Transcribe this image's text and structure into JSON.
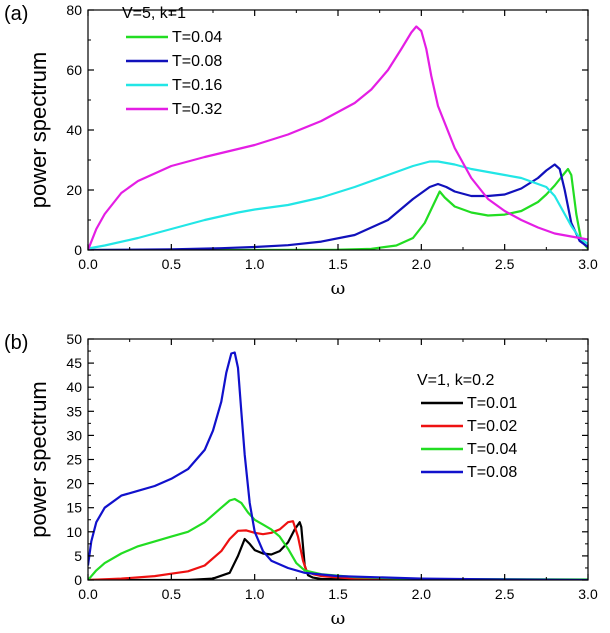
{
  "chart_data": [
    {
      "type": "line",
      "panel_label": "(a)",
      "ylabel": "power spectrum",
      "xlabel": "ω",
      "xlim": [
        0,
        3.0
      ],
      "ylim": [
        0,
        80
      ],
      "xticks": [
        "0.0",
        "0.5",
        "1.0",
        "1.5",
        "2.0",
        "2.5",
        "3.0"
      ],
      "yticks": [
        "0",
        "20",
        "40",
        "60",
        "80"
      ],
      "legend_title": "V=5, k=1",
      "legend_position": "top-left",
      "series": [
        {
          "name": "T=0.04",
          "color": "#22dd22",
          "x": [
            0,
            0.5,
            1.0,
            1.5,
            1.7,
            1.85,
            1.95,
            2.02,
            2.08,
            2.11,
            2.14,
            2.2,
            2.3,
            2.4,
            2.5,
            2.6,
            2.7,
            2.75,
            2.8,
            2.85,
            2.88,
            2.9,
            2.93,
            2.96,
            3.0
          ],
          "y": [
            0,
            0,
            0,
            0.1,
            0.4,
            1.5,
            4,
            9,
            16,
            19.5,
            17.5,
            14.5,
            12.5,
            11.5,
            11.8,
            13,
            16,
            18.5,
            21.5,
            25,
            27,
            25,
            12,
            3,
            0.5
          ]
        },
        {
          "name": "T=0.08",
          "color": "#1111bb",
          "x": [
            0,
            0.5,
            0.8,
            1.0,
            1.2,
            1.4,
            1.6,
            1.8,
            1.95,
            2.05,
            2.1,
            2.15,
            2.2,
            2.3,
            2.4,
            2.5,
            2.6,
            2.7,
            2.75,
            2.8,
            2.83,
            2.86,
            2.9,
            2.95,
            3.0
          ],
          "y": [
            0,
            0.2,
            0.6,
            1,
            1.6,
            2.8,
            5,
            10,
            17,
            21,
            22,
            21,
            19.5,
            18,
            18,
            18.5,
            20.5,
            24,
            26.5,
            28.5,
            27,
            20,
            9,
            3,
            1
          ]
        },
        {
          "name": "T=0.16",
          "color": "#22e6e6",
          "x": [
            0,
            0.1,
            0.3,
            0.5,
            0.7,
            0.9,
            1.0,
            1.2,
            1.4,
            1.6,
            1.8,
            1.95,
            2.05,
            2.1,
            2.2,
            2.3,
            2.4,
            2.5,
            2.6,
            2.7,
            2.75,
            2.8,
            2.85,
            2.9,
            2.95,
            3.0
          ],
          "y": [
            0.5,
            1.5,
            4,
            7,
            10,
            12.5,
            13.5,
            15,
            17.5,
            21,
            25,
            28,
            29.5,
            29.5,
            28.5,
            27,
            26,
            25,
            24,
            22,
            21,
            18,
            13,
            8,
            4,
            2
          ]
        },
        {
          "name": "T=0.32",
          "color": "#e41ee4",
          "x": [
            0,
            0.05,
            0.1,
            0.2,
            0.3,
            0.5,
            0.7,
            1.0,
            1.2,
            1.4,
            1.6,
            1.7,
            1.8,
            1.88,
            1.94,
            1.97,
            2.0,
            2.03,
            2.06,
            2.1,
            2.2,
            2.3,
            2.4,
            2.5,
            2.6,
            2.7,
            2.8,
            2.9,
            3.0
          ],
          "y": [
            0,
            7,
            12,
            19,
            23,
            28,
            31,
            35,
            38.5,
            43,
            49,
            53.5,
            60,
            67,
            72.5,
            74.5,
            73,
            67,
            58,
            48,
            34,
            24,
            17,
            13,
            10,
            7.5,
            5.5,
            4.5,
            3.5
          ]
        }
      ]
    },
    {
      "type": "line",
      "panel_label": "(b)",
      "ylabel": "power spectrum",
      "xlabel": "ω",
      "xlim": [
        0,
        3.0
      ],
      "ylim": [
        0,
        50
      ],
      "xticks": [
        "0.0",
        "0.5",
        "1.0",
        "1.5",
        "2.0",
        "2.5",
        "3.0"
      ],
      "yticks": [
        "0",
        "5",
        "10",
        "15",
        "20",
        "25",
        "30",
        "35",
        "40",
        "45",
        "50"
      ],
      "legend_title": "V=1, k=0.2",
      "legend_position": "right",
      "series": [
        {
          "name": "T=0.01",
          "color": "#000000",
          "x": [
            0,
            0.6,
            0.75,
            0.85,
            0.9,
            0.94,
            0.97,
            1.0,
            1.05,
            1.1,
            1.15,
            1.2,
            1.24,
            1.27,
            1.28,
            1.3,
            1.32,
            1.35,
            1.4,
            1.6,
            3.0
          ],
          "y": [
            0,
            0,
            0.3,
            1.5,
            5,
            8.5,
            7.5,
            6.2,
            5.5,
            5.3,
            6,
            7.8,
            10.5,
            12,
            11,
            3,
            1,
            0.5,
            0.2,
            0.1,
            0
          ]
        },
        {
          "name": "T=0.02",
          "color": "#ee1111",
          "x": [
            0,
            0.2,
            0.4,
            0.5,
            0.6,
            0.7,
            0.8,
            0.85,
            0.9,
            0.95,
            1.0,
            1.05,
            1.1,
            1.15,
            1.2,
            1.23,
            1.26,
            1.29,
            1.31,
            1.35,
            1.4,
            1.6,
            2.0,
            3.0
          ],
          "y": [
            0,
            0.3,
            0.8,
            1.3,
            1.8,
            3,
            6,
            8.5,
            10.2,
            10.3,
            9.8,
            9.5,
            9.8,
            10.5,
            12,
            12.2,
            9,
            4,
            2,
            1.2,
            0.8,
            0.3,
            0.1,
            0
          ]
        },
        {
          "name": "T=0.04",
          "color": "#22dd22",
          "x": [
            0,
            0.05,
            0.1,
            0.2,
            0.3,
            0.4,
            0.5,
            0.6,
            0.7,
            0.8,
            0.85,
            0.88,
            0.92,
            0.96,
            1.0,
            1.05,
            1.1,
            1.15,
            1.2,
            1.25,
            1.3,
            1.4,
            1.6,
            2.0,
            3.0
          ],
          "y": [
            0,
            2,
            3.5,
            5.5,
            7,
            8,
            9,
            10,
            12,
            15,
            16.5,
            16.8,
            16,
            14,
            12.5,
            11.5,
            10.5,
            9,
            6.5,
            3.5,
            2,
            1.2,
            0.6,
            0.2,
            0.1
          ]
        },
        {
          "name": "T=0.08",
          "color": "#1111cc",
          "x": [
            0,
            0.02,
            0.05,
            0.1,
            0.2,
            0.3,
            0.4,
            0.5,
            0.6,
            0.7,
            0.75,
            0.8,
            0.83,
            0.86,
            0.88,
            0.9,
            0.92,
            0.94,
            0.97,
            1.0,
            1.05,
            1.1,
            1.2,
            1.3,
            1.5,
            2.0,
            2.5,
            3.0
          ],
          "y": [
            3,
            8,
            12,
            15,
            17.5,
            18.5,
            19.5,
            21,
            23,
            27,
            31,
            37,
            43,
            47,
            47.2,
            44,
            35,
            26,
            16,
            10,
            6,
            4,
            2.5,
            1.5,
            0.8,
            0.3,
            0.1,
            0
          ]
        }
      ]
    }
  ]
}
